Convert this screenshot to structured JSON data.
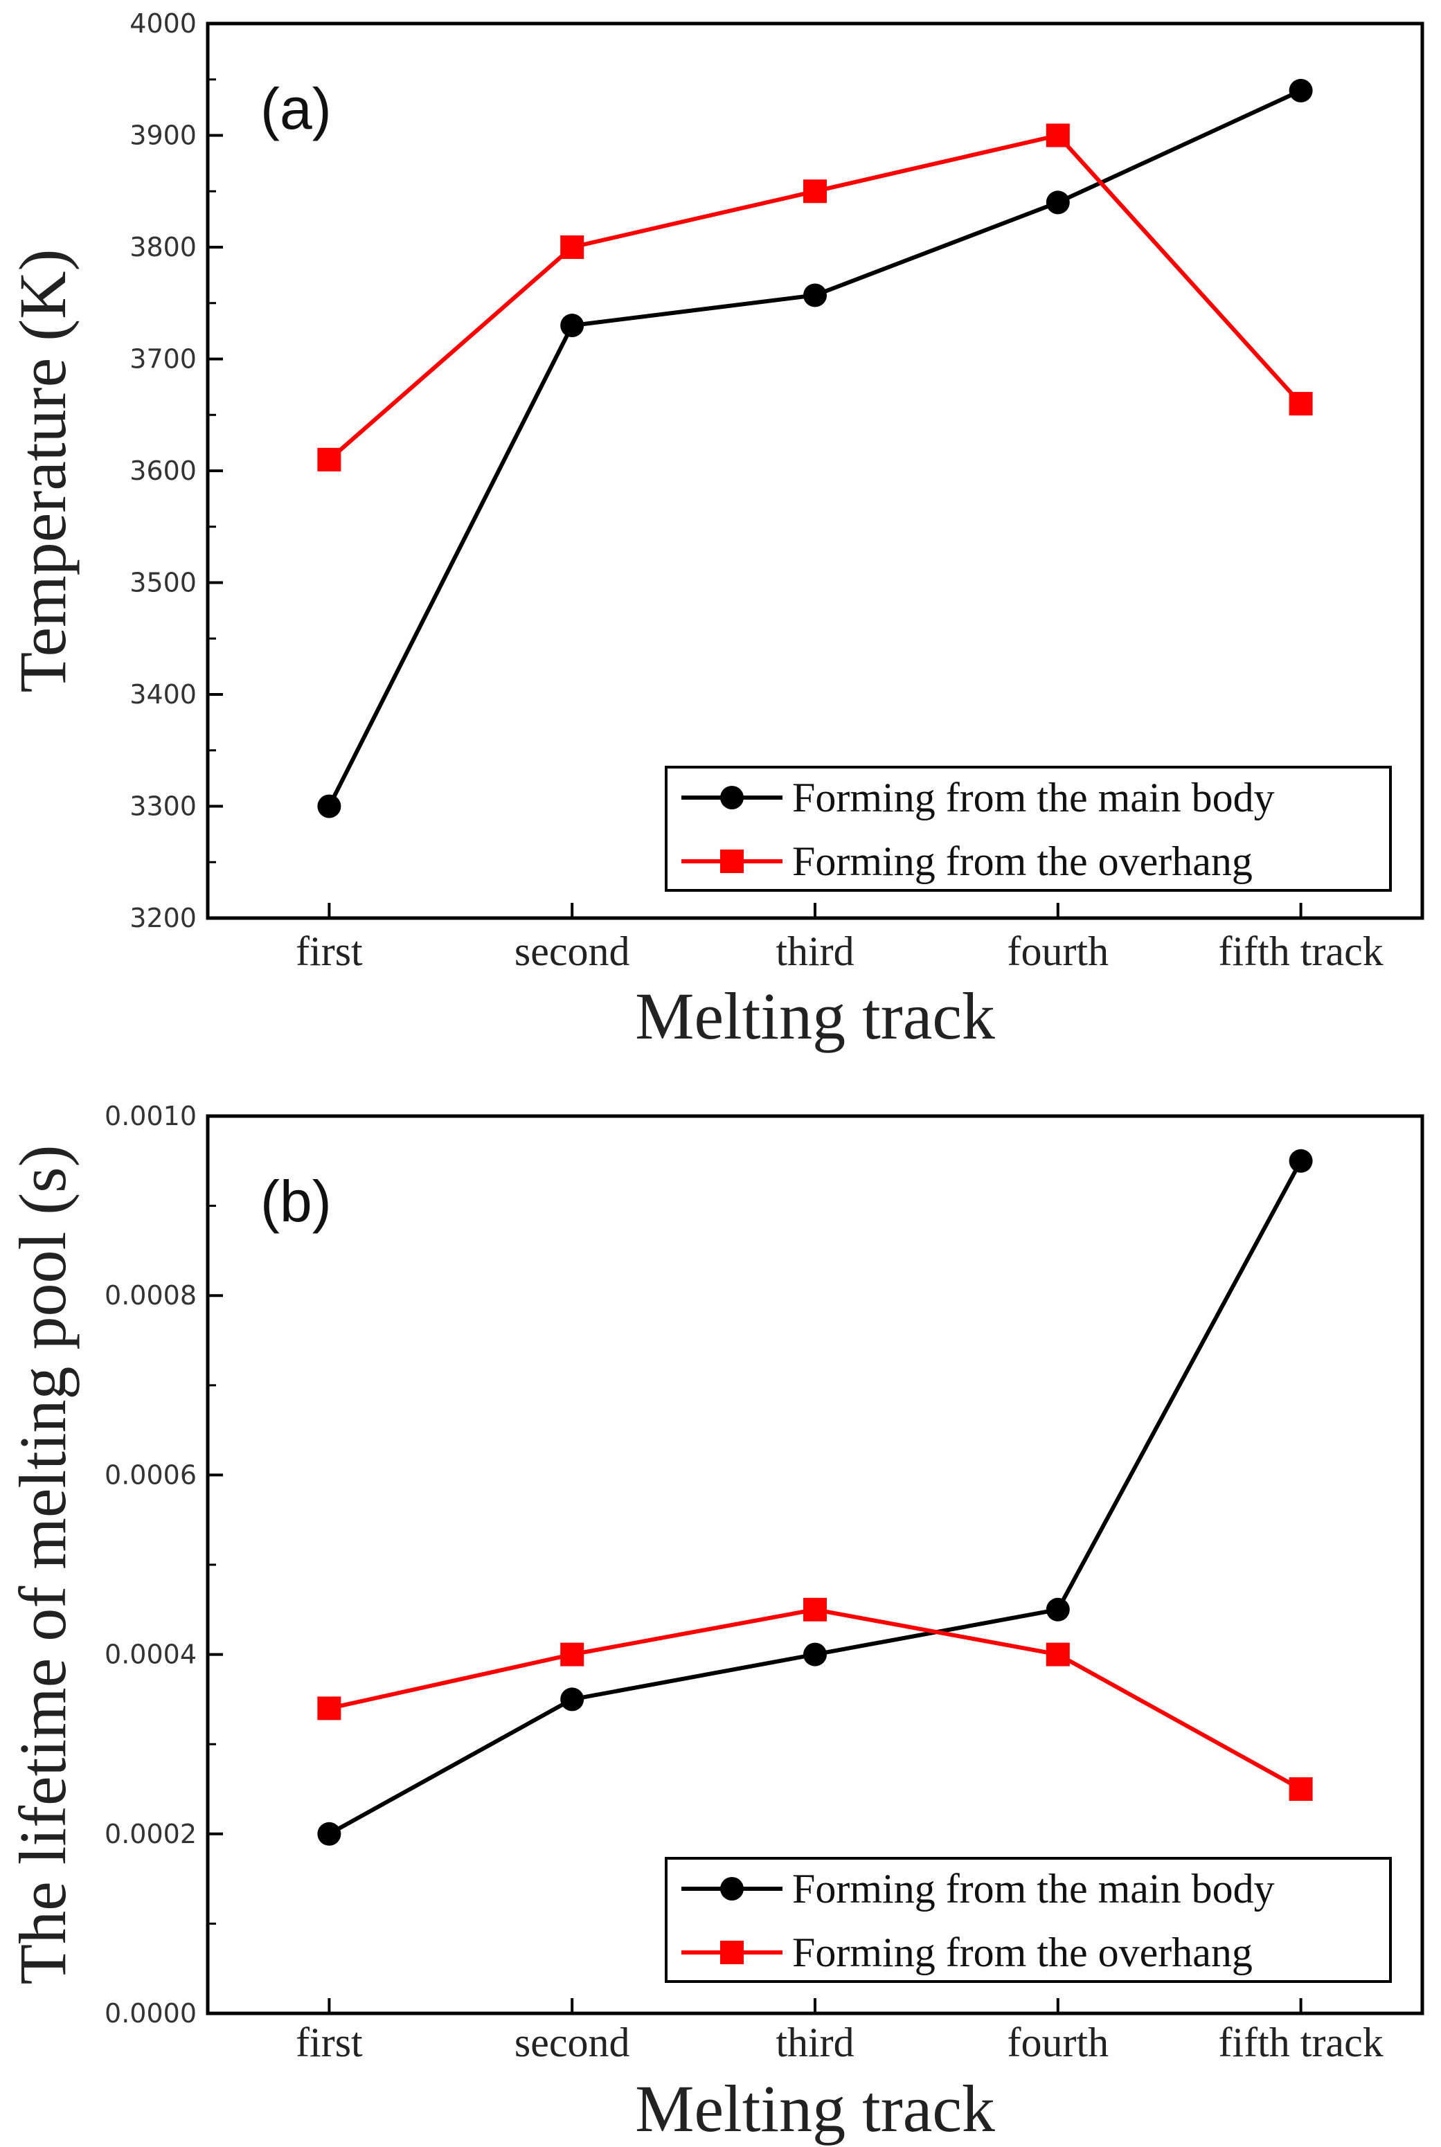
{
  "chart_data": [
    {
      "type": "line",
      "panel_label": "(a)",
      "categories": [
        "first",
        "second",
        "third",
        "fourth",
        "fifth track"
      ],
      "xlabel": "Melting track",
      "ylabel": "Temperature (K)",
      "ylim": [
        3200,
        4000
      ],
      "yticks": [
        "3200",
        "3300",
        "3400",
        "3500",
        "3600",
        "3700",
        "3800",
        "3900",
        "4000"
      ],
      "legend_position": "bottom-right",
      "series": [
        {
          "name": "Forming from the main body",
          "color": "#000000",
          "marker": "circle",
          "values": [
            3300,
            3730,
            3757,
            3840,
            3940
          ]
        },
        {
          "name": "Forming from the overhang",
          "color": "#ff0000",
          "marker": "square",
          "values": [
            3610,
            3800,
            3850,
            3900,
            3660
          ]
        }
      ]
    },
    {
      "type": "line",
      "panel_label": "(b)",
      "categories": [
        "first",
        "second",
        "third",
        "fourth",
        "fifth track"
      ],
      "xlabel": "Melting track",
      "ylabel": "The lifetime of melting pool (s)",
      "ylim": [
        0,
        0.001
      ],
      "yticks": [
        "0.0000",
        "0.0002",
        "0.0004",
        "0.0006",
        "0.0008",
        "0.0010"
      ],
      "legend_position": "bottom-right",
      "series": [
        {
          "name": "Forming from the main body",
          "color": "#000000",
          "marker": "circle",
          "values": [
            0.0002,
            0.00035,
            0.0004,
            0.00045,
            0.00095
          ]
        },
        {
          "name": "Forming from the overhang",
          "color": "#ff0000",
          "marker": "square",
          "values": [
            0.00034,
            0.0004,
            0.00045,
            0.0004,
            0.00025
          ]
        }
      ]
    }
  ]
}
